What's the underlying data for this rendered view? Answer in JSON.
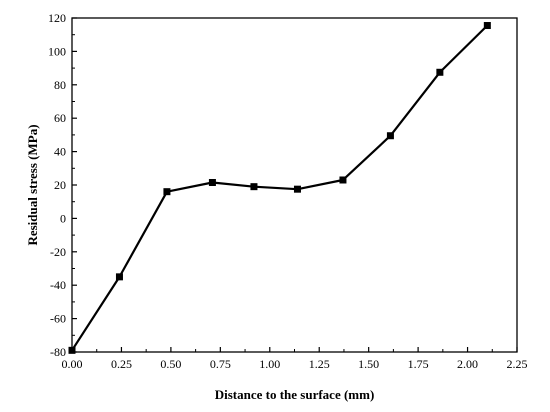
{
  "chart_data": {
    "type": "line",
    "title": "",
    "xlabel": "Distance to the surface (mm)",
    "ylabel": "Residual stress (MPa)",
    "xlim": [
      0.0,
      2.25
    ],
    "ylim": [
      -80,
      120
    ],
    "x_ticks": [
      "0.00",
      "0.25",
      "0.50",
      "0.75",
      "1.00",
      "1.25",
      "1.50",
      "1.75",
      "2.00",
      "2.25"
    ],
    "y_ticks": [
      "-80",
      "-60",
      "-40",
      "-20",
      "0",
      "20",
      "40",
      "60",
      "80",
      "100",
      "120"
    ],
    "grid": false,
    "legend": "none",
    "marker": "square",
    "series": [
      {
        "color": "#000000",
        "x": [
          0.0,
          0.24,
          0.48,
          0.71,
          0.92,
          1.14,
          1.37,
          1.61,
          1.86,
          2.1
        ],
        "y": [
          -79,
          -35,
          16,
          21.5,
          19,
          17.5,
          23,
          49.5,
          87.5,
          115.5
        ]
      }
    ]
  }
}
